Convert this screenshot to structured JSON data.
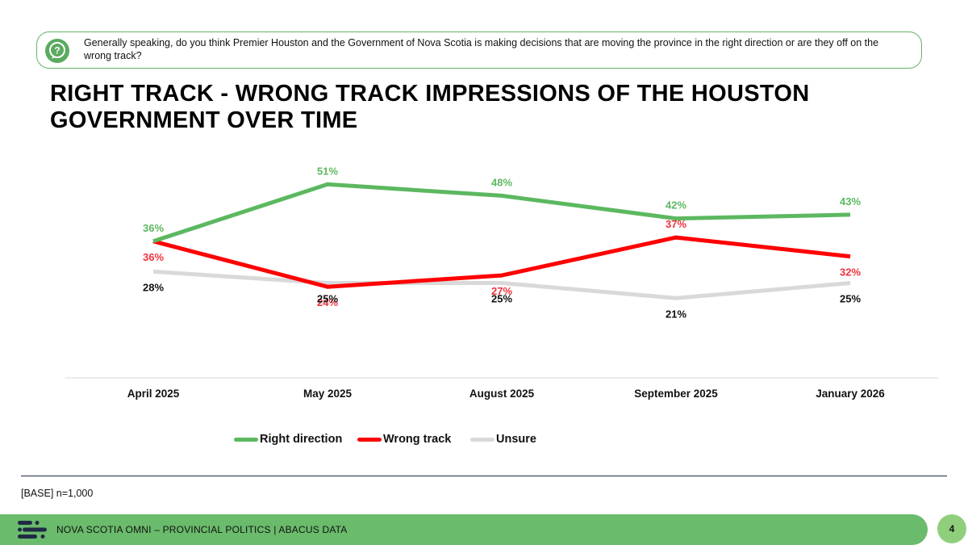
{
  "question": {
    "icon": "question-bubble-icon",
    "text": "Generally speaking, do you think Premier Houston and the Government of Nova Scotia is making decisions that are moving the province in the right direction or are they off on the wrong track?"
  },
  "title": "RIGHT TRACK - WRONG TRACK IMPRESSIONS OF THE HOUSTON GOVERNMENT OVER TIME",
  "chart_data": {
    "type": "line",
    "categories": [
      "April 2025",
      "May 2025",
      "August 2025",
      "September 2025",
      "January 2026"
    ],
    "series": [
      {
        "name": "Right direction",
        "color": "#5cb860",
        "label_color": "#5cb860",
        "values": [
          36,
          51,
          48,
          42,
          43
        ],
        "labels": [
          "36%",
          "51%",
          "48%",
          "42%",
          "43%"
        ]
      },
      {
        "name": "Wrong track",
        "color": "#ff0000",
        "label_color": "#f0323c",
        "values": [
          36,
          24,
          27,
          37,
          32
        ],
        "labels": [
          "36%",
          "24%",
          "27%",
          "37%",
          "32%"
        ]
      },
      {
        "name": "Unsure",
        "color": "#d9d9d9",
        "label_color": "#111111",
        "values": [
          28,
          25,
          25,
          21,
          25
        ],
        "labels": [
          "28%",
          "25%",
          "25%",
          "21%",
          "25%"
        ]
      }
    ],
    "ylim": [
      0,
      60
    ],
    "grid": false,
    "legend": "bottom-center"
  },
  "base_note": "[BASE] n=1,000",
  "footer": {
    "logo_icon": "abacus-logo-icon",
    "text": "NOVA SCOTIA OMNI – PROVINCIAL POLITICS  |  ABACUS DATA",
    "page_number": "4"
  }
}
